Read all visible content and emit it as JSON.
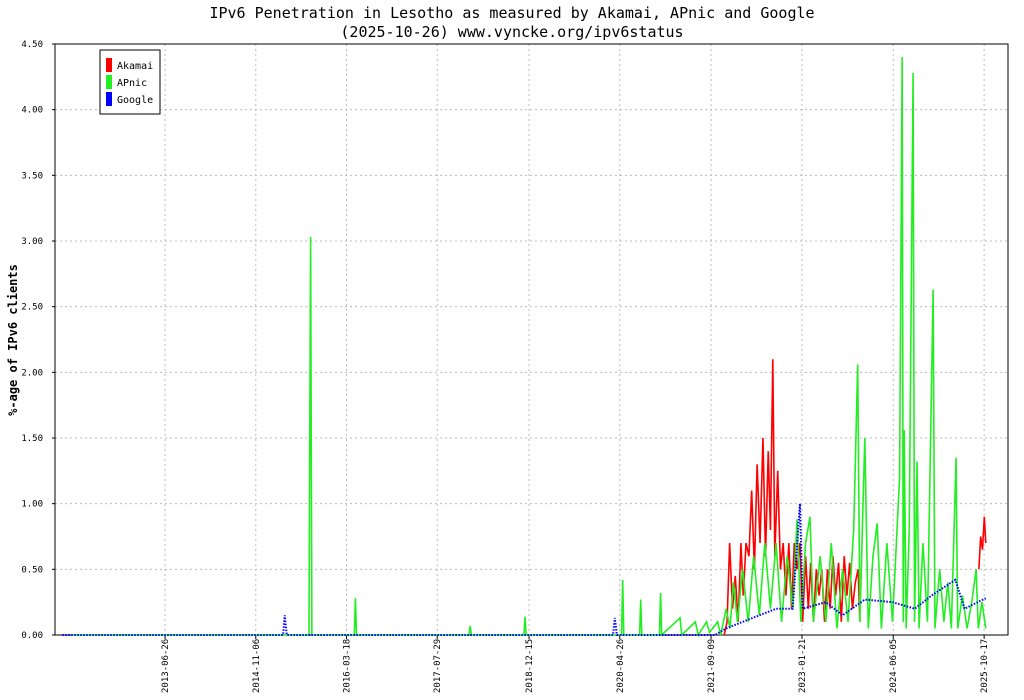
{
  "chart_data": {
    "type": "line",
    "title": "IPv6 Penetration in Lesotho as measured by Akamai, APnic and Google",
    "subtitle": "(2025-10-26) www.vyncke.org/ipv6status",
    "y_label": "%-age of IPv6 clients",
    "xlim": [
      "2011-10-31",
      "2026-02-25"
    ],
    "xticks": [
      "2013-06-26",
      "2014-11-06",
      "2016-03-18",
      "2017-07-29",
      "2018-12-15",
      "2020-04-26",
      "2021-09-09",
      "2023-01-21",
      "2024-06-05",
      "2025-10-17"
    ],
    "ylim": [
      0,
      4.5
    ],
    "yticks": [
      {
        "value": 0,
        "label": "0.00"
      },
      {
        "value": 0.5,
        "label": "0.50"
      },
      {
        "value": 1,
        "label": "1.00"
      },
      {
        "value": 1.5,
        "label": "1.50"
      },
      {
        "value": 2,
        "label": "2.00"
      },
      {
        "value": 2.5,
        "label": "2.50"
      },
      {
        "value": 3,
        "label": "3.00"
      },
      {
        "value": 3.5,
        "label": "3.50"
      },
      {
        "value": 4,
        "label": "4.00"
      },
      {
        "value": 4.5,
        "label": "4.50"
      }
    ],
    "grid": true,
    "legend": "upper left",
    "series": [
      {
        "name": "Akamai",
        "color": "#ff0000",
        "style": "solid",
        "x": [
          "2021-11-20",
          "2021-12-06",
          "2021-12-20",
          "2022-01-05",
          "2022-01-20",
          "2022-02-05",
          "2022-02-20",
          "2022-03-05",
          "2022-03-20",
          "2022-04-05",
          "2022-04-20",
          "2022-05-05",
          "2022-05-20",
          "2022-06-05",
          "2022-06-21",
          "2022-07-05",
          "2022-07-20",
          "2022-08-01",
          "2022-08-14",
          "2022-08-25",
          "2022-09-10",
          "2022-09-25",
          "2022-10-10",
          "2022-10-25",
          "2022-11-10",
          "2022-11-25",
          "2022-12-10",
          "2022-12-25",
          "2023-01-10",
          "2023-01-25",
          "2023-02-10",
          "2023-02-25",
          "2023-03-10",
          "2023-03-25",
          "2023-04-10",
          "2023-04-25",
          "2023-05-10",
          "2023-05-25",
          "2023-06-10",
          "2023-06-25",
          "2023-07-10",
          "2023-07-25",
          "2023-08-10",
          "2023-08-25",
          "2023-09-10",
          "2023-09-25",
          "2023-10-10",
          "2023-10-25",
          "2023-11-10",
          "2023-11-25",
          "2023-12-05",
          "2024-06-01",
          "2025-09-18",
          "2025-09-28",
          "2025-10-08",
          "2025-10-18",
          "2025-10-26"
        ],
        "values": [
          0,
          0.1,
          0.7,
          0.2,
          0.45,
          0.1,
          0.7,
          0.3,
          0.7,
          0.6,
          1.1,
          0.5,
          1.3,
          0.7,
          1.5,
          0.6,
          1.4,
          0.8,
          2.1,
          0.6,
          1.25,
          0.5,
          0.7,
          0.3,
          0.7,
          0.2,
          0.7,
          0.5,
          0.7,
          0.1,
          0.6,
          0.2,
          0.55,
          0.1,
          0.5,
          0.3,
          0.5,
          0.1,
          0.5,
          0.2,
          0.6,
          0.3,
          0.55,
          0.1,
          0.6,
          0.3,
          0.55,
          0.2,
          0.4,
          0.5,
          0.1,
          null,
          0.5,
          0.75,
          0.65,
          0.9,
          0.7
        ]
      },
      {
        "name": "APnic",
        "color": "#22ee22",
        "style": "solid",
        "x": [
          "2012-02-03",
          "2015-08-25",
          "2015-09-03",
          "2015-09-10",
          "2016-04-30",
          "2016-05-06",
          "2016-05-12",
          "2018-01-20",
          "2018-01-26",
          "2018-02-01",
          "2018-11-17",
          "2018-11-23",
          "2018-11-29",
          "2020-05-06",
          "2020-05-12",
          "2020-05-18",
          "2020-08-13",
          "2020-08-19",
          "2020-08-25",
          "2020-11-30",
          "2020-12-06",
          "2020-12-12",
          "2021-03-23",
          "2021-04-01",
          "2021-06-15",
          "2021-07-01",
          "2021-08-15",
          "2021-09-01",
          "2021-10-15",
          "2021-11-01",
          "2021-12-01",
          "2021-12-22",
          "2022-01-10",
          "2022-02-01",
          "2022-03-01",
          "2022-04-01",
          "2022-05-01",
          "2022-06-01",
          "2022-07-01",
          "2022-08-01",
          "2022-09-01",
          "2022-10-01",
          "2022-11-01",
          "2022-12-01",
          "2022-12-25",
          "2023-01-15",
          "2023-02-10",
          "2023-03-06",
          "2023-03-25",
          "2023-05-01",
          "2023-06-01",
          "2023-07-01",
          "2023-08-01",
          "2023-09-01",
          "2023-10-01",
          "2023-11-01",
          "2023-11-23",
          "2023-12-05",
          "2024-01-01",
          "2024-01-20",
          "2024-02-15",
          "2024-03-09",
          "2024-04-01",
          "2024-05-01",
          "2024-06-01",
          "2024-07-10",
          "2024-07-24",
          "2024-07-30",
          "2024-08-04",
          "2024-08-15",
          "2024-09-01",
          "2024-09-22",
          "2024-09-30",
          "2024-10-14",
          "2024-10-25",
          "2024-11-15",
          "2024-12-10",
          "2025-01-10",
          "2025-01-20",
          "2025-02-15",
          "2025-03-10",
          "2025-04-01",
          "2025-04-20",
          "2025-05-16",
          "2025-05-25",
          "2025-06-20",
          "2025-07-15",
          "2025-08-10",
          "2025-09-03",
          "2025-09-15",
          "2025-10-05",
          "2025-10-26"
        ],
        "values": [
          0,
          0,
          3.03,
          0,
          0,
          0.28,
          0,
          0,
          0.07,
          0,
          0,
          0.14,
          0,
          0,
          0.42,
          0,
          0,
          0.27,
          0,
          0,
          0.32,
          0,
          0.13,
          0,
          0.1,
          0,
          0.1,
          0.02,
          0.1,
          0,
          0.2,
          0.05,
          0.4,
          0.1,
          0.5,
          0.1,
          0.6,
          0.15,
          0.7,
          0.2,
          0.7,
          0.1,
          0.6,
          0.2,
          0.88,
          0.1,
          0.7,
          0.9,
          0.1,
          0.6,
          0.1,
          0.7,
          0.05,
          0.5,
          0.1,
          0.8,
          2.06,
          0.1,
          1.5,
          0.05,
          0.6,
          0.85,
          0.05,
          0.7,
          0.1,
          1.2,
          4.4,
          0.1,
          1.56,
          0.05,
          0.8,
          4.28,
          0.1,
          1.32,
          0.05,
          0.7,
          0.1,
          2.63,
          0.05,
          0.5,
          0.1,
          0.4,
          0.05,
          1.35,
          0.05,
          0.3,
          0.05,
          0.25,
          0.5,
          0.05,
          0.25,
          0.05
        ]
      },
      {
        "name": "Google",
        "color": "#0000ff",
        "style": "dotted",
        "x": [
          "2011-12-10",
          "2015-04-05",
          "2015-04-14",
          "2015-04-25",
          "2020-03-20",
          "2020-03-30",
          "2020-04-10",
          "2021-10-01",
          "2021-12-01",
          "2022-03-01",
          "2022-06-01",
          "2022-09-01",
          "2022-12-01",
          "2023-01-10",
          "2023-01-25",
          "2023-06-01",
          "2023-09-01",
          "2024-01-01",
          "2024-06-01",
          "2024-10-01",
          "2025-01-01",
          "2025-05-12",
          "2025-07-01",
          "2025-10-26"
        ],
        "values": [
          0,
          0,
          0.15,
          0,
          0,
          0.13,
          0,
          0,
          0.05,
          0.1,
          0.15,
          0.2,
          0.2,
          1.0,
          0.2,
          0.25,
          0.15,
          0.27,
          0.25,
          0.2,
          0.3,
          0.42,
          0.2,
          0.28
        ]
      }
    ]
  }
}
